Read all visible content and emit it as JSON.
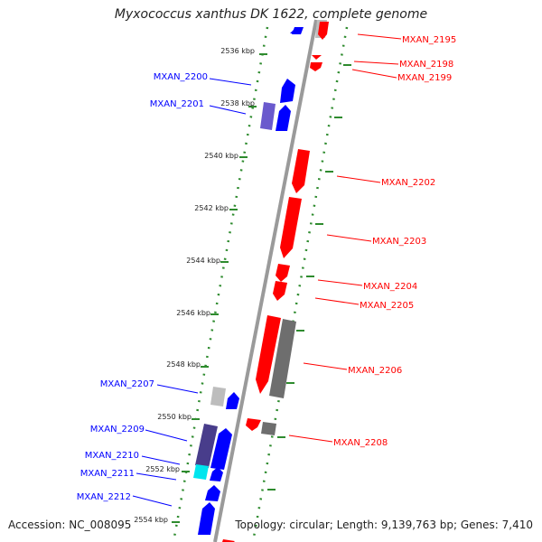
{
  "title": "Myxococcus xanthus DK 1622, complete genome",
  "footer": {
    "accession": "Accession: NC_008095",
    "summary": "Topology: circular; Length: 9,139,763 bp; Genes: 7,410"
  },
  "colors": {
    "forward_gene": "#0000ff",
    "reverse_gene": "#ff0000",
    "gray_gene": "#6e6e6e",
    "light_gray_gene": "#bdbdbd",
    "slate_gene": "#6a5acd",
    "cyan_gene": "#00e5ee",
    "backbone": "#9a9a9a",
    "ruler": "#2e8b2e"
  },
  "ruler_ticks": [
    "2536 kbp",
    "2538 kbp",
    "2540 kbp",
    "2542 kbp",
    "2544 kbp",
    "2546 kbp",
    "2548 kbp",
    "2550 kbp",
    "2552 kbp",
    "2554 kbp"
  ],
  "gene_labels": {
    "forward": [
      "MXAN_2200",
      "MXAN_2201",
      "MXAN_2207",
      "MXAN_2209",
      "MXAN_2210",
      "MXAN_2211",
      "MXAN_2212"
    ],
    "reverse": [
      "MXAN_2195",
      "MXAN_2198",
      "MXAN_2199",
      "MXAN_2202",
      "MXAN_2203",
      "MXAN_2204",
      "MXAN_2205",
      "MXAN_2206",
      "MXAN_2208"
    ]
  }
}
